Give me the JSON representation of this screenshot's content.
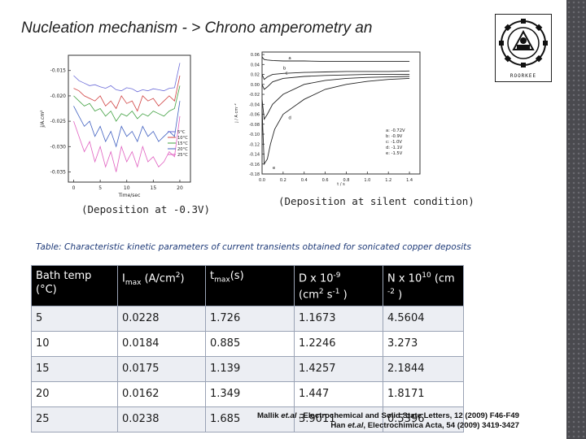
{
  "slide": {
    "title": "Nucleation mechanism - > Chrono amperometry an"
  },
  "logo": {
    "text": "ROORKEE"
  },
  "left_chart": {
    "caption": "(Deposition at -0.3V)",
    "xlabel": "Time/sec",
    "ylabel": "j/A.cm²"
  },
  "right_chart": {
    "caption": "(Deposition at silent condition)",
    "xlabel": "t / s",
    "ylabel": "j / A cm⁻²"
  },
  "chart_data": [
    {
      "type": "line",
      "xlabel": "Time/sec",
      "ylabel": "j/A.cm²",
      "xlim": [
        -1,
        22
      ],
      "ylim": [
        -0.037,
        -0.012
      ],
      "xticks": [
        "0",
        "5",
        "10",
        "15",
        "20"
      ],
      "yticks": [
        "-0.015",
        "-0.020",
        "-0.025",
        "-0.030",
        "-0.035"
      ],
      "legend_position": "bottom-right",
      "series": [
        {
          "name": "5°C",
          "color": "#6a6ad8",
          "x": [
            0,
            1,
            2,
            3,
            4,
            5,
            6,
            7,
            8,
            9,
            10,
            11,
            12,
            13,
            14,
            15,
            16,
            17,
            18,
            19,
            20
          ],
          "y": [
            -0.016,
            -0.017,
            -0.0175,
            -0.018,
            -0.0178,
            -0.0182,
            -0.0185,
            -0.018,
            -0.0188,
            -0.019,
            -0.0184,
            -0.0186,
            -0.0192,
            -0.0188,
            -0.019,
            -0.0186,
            -0.0188,
            -0.019,
            -0.0185,
            -0.0184,
            -0.0135
          ]
        },
        {
          "name": "10°C",
          "color": "#d04040",
          "x": [
            0,
            1,
            2,
            3,
            4,
            5,
            6,
            7,
            8,
            9,
            10,
            11,
            12,
            13,
            14,
            15,
            16,
            17,
            18,
            19,
            20
          ],
          "y": [
            -0.0185,
            -0.019,
            -0.02,
            -0.0205,
            -0.021,
            -0.02,
            -0.022,
            -0.021,
            -0.0225,
            -0.02,
            -0.0215,
            -0.021,
            -0.023,
            -0.02,
            -0.021,
            -0.0205,
            -0.022,
            -0.021,
            -0.02,
            -0.021,
            -0.016
          ]
        },
        {
          "name": "15°C",
          "color": "#40a040",
          "x": [
            0,
            1,
            2,
            3,
            4,
            5,
            6,
            7,
            8,
            9,
            10,
            11,
            12,
            13,
            14,
            15,
            16,
            17,
            18,
            19,
            20
          ],
          "y": [
            -0.02,
            -0.021,
            -0.022,
            -0.0215,
            -0.023,
            -0.0225,
            -0.024,
            -0.023,
            -0.025,
            -0.0235,
            -0.024,
            -0.023,
            -0.0245,
            -0.0235,
            -0.024,
            -0.023,
            -0.0235,
            -0.024,
            -0.023,
            -0.0225,
            -0.018
          ]
        },
        {
          "name": "20°C",
          "color": "#4060c0",
          "x": [
            0,
            1,
            2,
            3,
            4,
            5,
            6,
            7,
            8,
            9,
            10,
            11,
            12,
            13,
            14,
            15,
            16,
            17,
            18,
            19,
            20
          ],
          "y": [
            -0.022,
            -0.024,
            -0.026,
            -0.025,
            -0.028,
            -0.026,
            -0.029,
            -0.027,
            -0.03,
            -0.026,
            -0.028,
            -0.027,
            -0.029,
            -0.026,
            -0.028,
            -0.027,
            -0.029,
            -0.028,
            -0.027,
            -0.028,
            -0.021
          ]
        },
        {
          "name": "25°C",
          "color": "#e060c0",
          "x": [
            0,
            1,
            2,
            3,
            4,
            5,
            6,
            7,
            8,
            9,
            10,
            11,
            12,
            13,
            14,
            15,
            16,
            17,
            18,
            19,
            20
          ],
          "y": [
            -0.025,
            -0.028,
            -0.031,
            -0.029,
            -0.033,
            -0.03,
            -0.034,
            -0.031,
            -0.035,
            -0.03,
            -0.033,
            -0.031,
            -0.034,
            -0.03,
            -0.033,
            -0.032,
            -0.034,
            -0.033,
            -0.031,
            -0.032,
            -0.024
          ]
        }
      ]
    },
    {
      "type": "line",
      "xlabel": "t / s",
      "ylabel": "j / A cm⁻²",
      "xlim": [
        0,
        1.5
      ],
      "ylim": [
        -0.18,
        0.065
      ],
      "xticks": [
        "0.0",
        "0.2",
        "0.4",
        "0.6",
        "0.8",
        "1.0",
        "1.2",
        "1.4"
      ],
      "yticks": [
        "0.06",
        "0.04",
        "0.02",
        "0.00",
        "-0.02",
        "-0.04",
        "-0.06",
        "-0.08",
        "-0.10",
        "-0.12",
        "-0.14",
        "-0.16",
        "-0.18"
      ],
      "legend_position": "bottom-right",
      "legend": [
        "a: -0.72V",
        "b: -0.9V",
        "c: -1.0V",
        "d: -1.1V",
        "e: -1.5V"
      ],
      "series": [
        {
          "name": "a",
          "color": "#222222",
          "x": [
            0,
            0.02,
            0.05,
            0.1,
            0.2,
            0.4,
            0.6,
            0.8,
            1.0,
            1.2,
            1.4
          ],
          "y": [
            0.055,
            0.05,
            0.049,
            0.048,
            0.047,
            0.047,
            0.046,
            0.046,
            0.046,
            0.046,
            0.046
          ]
        },
        {
          "name": "b",
          "color": "#222222",
          "x": [
            0,
            0.02,
            0.05,
            0.1,
            0.2,
            0.4,
            0.6,
            0.8,
            1.0,
            1.2,
            1.4
          ],
          "y": [
            0.02,
            0.01,
            0.015,
            0.02,
            0.022,
            0.024,
            0.025,
            0.026,
            0.026,
            0.026,
            0.027
          ]
        },
        {
          "name": "c",
          "color": "#222222",
          "x": [
            0,
            0.02,
            0.05,
            0.1,
            0.2,
            0.4,
            0.6,
            0.8,
            1.0,
            1.2,
            1.4
          ],
          "y": [
            0.0,
            -0.01,
            -0.005,
            0.005,
            0.012,
            0.016,
            0.018,
            0.019,
            0.02,
            0.02,
            0.02
          ]
        },
        {
          "name": "d",
          "color": "#222222",
          "x": [
            0,
            0.02,
            0.05,
            0.1,
            0.2,
            0.4,
            0.6,
            0.8,
            1.0,
            1.2,
            1.4
          ],
          "y": [
            -0.03,
            -0.07,
            -0.06,
            -0.04,
            -0.02,
            0.0,
            0.008,
            0.012,
            0.014,
            0.015,
            0.016
          ]
        },
        {
          "name": "e",
          "color": "#222222",
          "x": [
            0,
            0.02,
            0.05,
            0.08,
            0.12,
            0.2,
            0.4,
            0.6,
            0.8,
            1.0,
            1.2,
            1.4
          ],
          "y": [
            -0.05,
            -0.16,
            -0.15,
            -0.12,
            -0.09,
            -0.06,
            -0.03,
            -0.01,
            0.0,
            0.006,
            0.01,
            0.012
          ]
        }
      ]
    }
  ],
  "table": {
    "caption": "Table: Characteristic kinetic parameters of current transients obtained for sonicated copper deposits",
    "headers": {
      "bath_temp": "Bath temp (°C)",
      "imax_main": "I",
      "imax_sub": "max",
      "imax_unit": " (A/cm",
      "imax_sup": "2",
      "imax_close": ")",
      "tmax_main": "t",
      "tmax_sub": "max",
      "tmax_unit": "(s)",
      "d_main": "D x 10",
      "d_sup": "-9",
      "d_unit": "(cm",
      "d_unit_sup": "2",
      "d_unit_mid": " s",
      "d_unit_sup2": "-1",
      "d_close": " )",
      "n_main": "N x 10",
      "n_sup": "10",
      "n_unit": " (cm",
      "n_unit_sup": "-2",
      "n_close": " )"
    },
    "rows": [
      [
        "5",
        "0.0228",
        "1.726",
        "1.1673",
        "4.5604"
      ],
      [
        "10",
        "0.0184",
        "0.885",
        "1.2246",
        "3.273"
      ],
      [
        "15",
        "0.0175",
        "1.139",
        "1.4257",
        "2.1844"
      ],
      [
        "20",
        "0.0162",
        "1.349",
        "1.447",
        "1.8171"
      ],
      [
        "25",
        "0.0238",
        "1.685",
        "3.9011",
        "0.5396"
      ]
    ]
  },
  "references": {
    "line1_a": "Mallik ",
    "line1_b": "et.al",
    "line1_c": " , Electrochemical and Solid State Letters, 12 (2009) F46-F49",
    "line2_a": "Han ",
    "line2_b": "et.al",
    "line2_c": ", Electrochimica Acta, 54 (2009) 3419-3427"
  }
}
